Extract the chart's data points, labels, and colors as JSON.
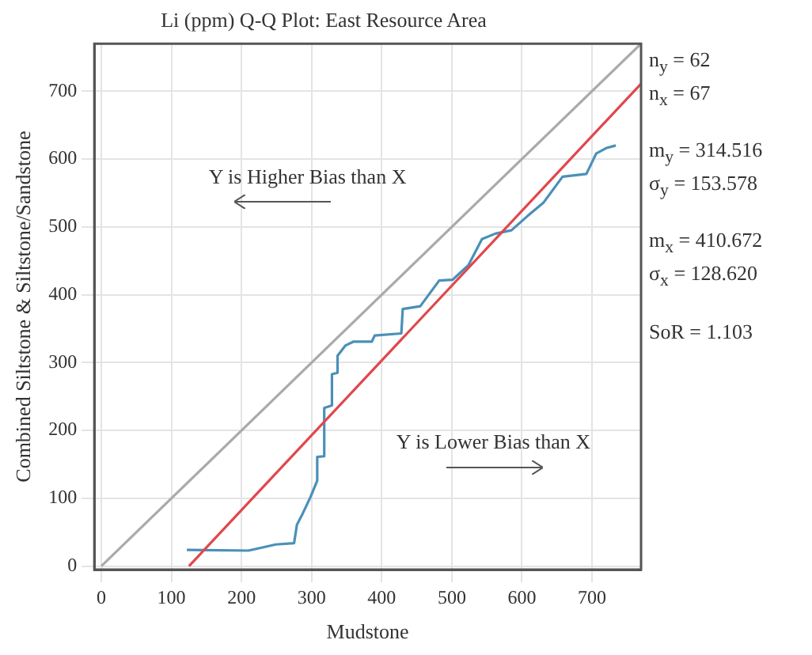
{
  "chart_data": {
    "type": "line",
    "title": "Li (ppm) Q-Q Plot: East Resource Area",
    "xlabel": "Mudstone",
    "ylabel": "Combined Siltstone & Siltstone/Sandstone",
    "xlim": [
      -10,
      770
    ],
    "ylim": [
      -5,
      770
    ],
    "xticks": [
      0,
      100,
      200,
      300,
      400,
      500,
      600,
      700
    ],
    "yticks": [
      0,
      100,
      200,
      300,
      400,
      500,
      600,
      700
    ],
    "grid": true,
    "legend": false,
    "marker": "none",
    "line_style": "solid",
    "series": [
      {
        "color": "#aaaaaa",
        "x": [
          0,
          770
        ],
        "values": [
          0,
          770
        ]
      },
      {
        "color": "#e0474c",
        "x": [
          125,
          770
        ],
        "values": [
          0,
          711
        ]
      },
      {
        "color": "#4a90b8",
        "x": [
          122,
          210,
          249,
          275,
          279,
          287,
          298,
          308,
          308,
          318,
          318,
          329,
          329,
          337,
          337,
          348,
          360,
          386,
          390,
          428,
          430,
          455,
          482,
          501,
          524,
          543,
          562,
          585,
          608,
          631,
          658,
          692,
          706,
          720,
          734
        ],
        "values": [
          24,
          23,
          32,
          34,
          61,
          77,
          101,
          126,
          161,
          162,
          233,
          237,
          283,
          285,
          310,
          325,
          331,
          331,
          340,
          343,
          379,
          383,
          421,
          422,
          444,
          482,
          490,
          495,
          516,
          536,
          574,
          578,
          608,
          616,
          620
        ]
      }
    ],
    "annotations": [
      "Y is Higher Bias than X",
      "Y is Lower Bias than X",
      "n$_{y}$ = 62",
      "n$_{x}$ = 67",
      "m$_{y}$ = 314.516",
      "σ$_{y}$ = 153.578",
      "m$_{x}$ = 410.672",
      "σ$_{x}$ = 128.620",
      "SoR = 1.103"
    ]
  }
}
